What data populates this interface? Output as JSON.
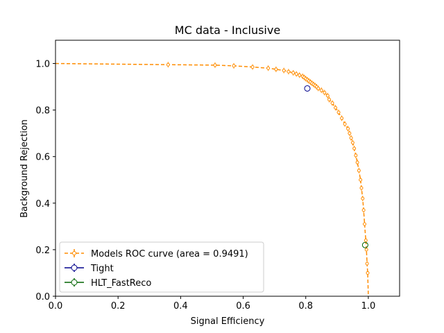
{
  "chart_data": {
    "type": "scatter",
    "title": "MC data - Inclusive",
    "xlabel": "Signal Efficiency",
    "ylabel": "Background Rejection",
    "xlim": [
      0,
      1.1
    ],
    "ylim": [
      0,
      1.1
    ],
    "xticks": [
      "0.0",
      "0.2",
      "0.4",
      "0.6",
      "0.8",
      "1.0"
    ],
    "yticks": [
      "0.0",
      "0.2",
      "0.4",
      "0.6",
      "0.8",
      "1.0"
    ],
    "grid": false,
    "legend_position": "lower-left",
    "series": [
      {
        "name": "Models ROC curve (area = 0.9491)",
        "color": "#ff8c00",
        "style": "dashed line with open circle markers and error bars",
        "x": [
          0.0,
          0.36,
          0.51,
          0.57,
          0.63,
          0.68,
          0.705,
          0.73,
          0.745,
          0.76,
          0.77,
          0.78,
          0.79,
          0.795,
          0.8,
          0.805,
          0.81,
          0.815,
          0.82,
          0.825,
          0.83,
          0.835,
          0.84,
          0.85,
          0.86,
          0.87,
          0.875,
          0.885,
          0.895,
          0.905,
          0.915,
          0.925,
          0.935,
          0.94,
          0.945,
          0.95,
          0.955,
          0.96,
          0.965,
          0.97,
          0.975,
          0.978,
          0.982,
          0.985,
          0.988,
          0.992,
          0.994,
          0.996,
          0.998,
          1.0
        ],
        "y": [
          1.0,
          0.995,
          0.993,
          0.99,
          0.985,
          0.98,
          0.975,
          0.97,
          0.965,
          0.96,
          0.955,
          0.95,
          0.945,
          0.94,
          0.935,
          0.93,
          0.925,
          0.92,
          0.915,
          0.91,
          0.905,
          0.9,
          0.893,
          0.885,
          0.875,
          0.862,
          0.845,
          0.83,
          0.81,
          0.79,
          0.765,
          0.74,
          0.72,
          0.7,
          0.68,
          0.66,
          0.635,
          0.605,
          0.575,
          0.54,
          0.5,
          0.465,
          0.42,
          0.37,
          0.31,
          0.24,
          0.2,
          0.14,
          0.1,
          0.0
        ]
      },
      {
        "name": "Tight",
        "color": "#00008b",
        "style": "open circle marker",
        "x": [
          0.805
        ],
        "y": [
          0.893
        ]
      },
      {
        "name": "HLT_FastReco",
        "color": "#006400",
        "style": "open circle marker",
        "x": [
          0.99
        ],
        "y": [
          0.22
        ]
      }
    ]
  }
}
